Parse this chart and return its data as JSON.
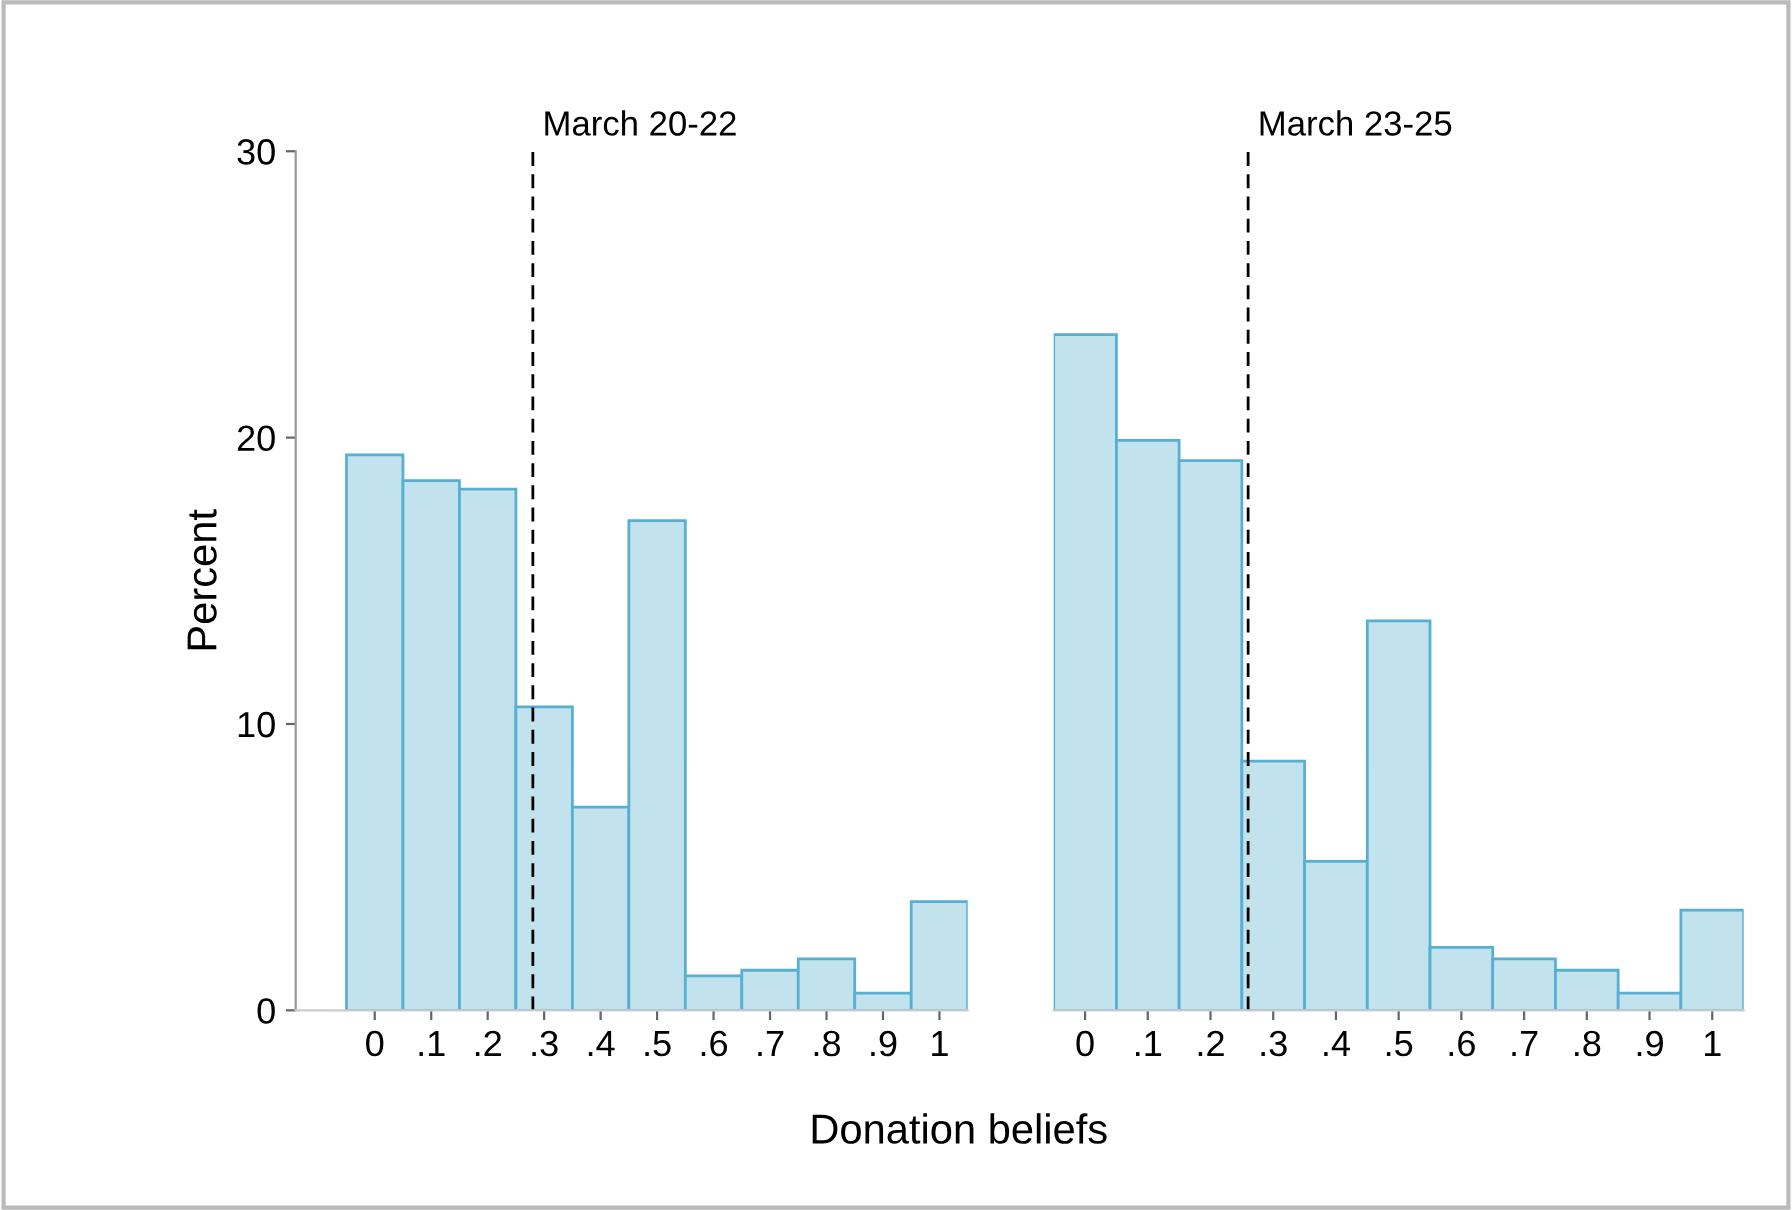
{
  "chart_data": [
    {
      "type": "histogram",
      "ylabel": "Percent",
      "xlabel": "Donation beliefs",
      "bins": [
        -0.05,
        0.05,
        0.15,
        0.25,
        0.35,
        0.45,
        0.55,
        0.65,
        0.75,
        0.85,
        0.95,
        1.05
      ],
      "values": [
        19.4,
        18.5,
        18.2,
        10.6,
        7.1,
        17.1,
        1.2,
        1.4,
        1.8,
        0.6,
        3.8
      ],
      "color": "#c2e2ee",
      "xlim": [
        -0.14,
        1.05
      ],
      "ylim": [
        0,
        30
      ],
      "yticks": [
        0,
        10,
        20,
        30
      ],
      "xticks": [
        0,
        {
          "value": 0.1,
          "label": ".1"
        },
        {
          "value": 0.2,
          "label": ".2"
        },
        {
          "value": 0.3,
          "label": ".3"
        },
        {
          "value": 0.4,
          "label": ".4"
        },
        {
          "value": 0.5,
          "label": ".5"
        },
        {
          "value": 0.6,
          "label": ".6"
        },
        {
          "value": 0.7,
          "label": ".7"
        },
        {
          "value": 0.8,
          "label": ".8"
        },
        {
          "value": 0.9,
          "label": ".9"
        },
        1
      ],
      "ref_lines": [
        {
          "axis": "x",
          "value": 0.28,
          "label": "March 20-22",
          "color": "#000000",
          "line_style": "dashed"
        }
      ],
      "grid": false
    },
    {
      "type": "histogram",
      "bins": [
        -0.05,
        0.05,
        0.15,
        0.25,
        0.35,
        0.45,
        0.55,
        0.65,
        0.75,
        0.85,
        0.95,
        1.05
      ],
      "values": [
        23.6,
        19.9,
        19.2,
        8.7,
        5.2,
        13.6,
        2.2,
        1.8,
        1.4,
        0.6,
        3.5
      ],
      "color": "#c2e2ee",
      "xlim": [
        -0.05,
        1.05
      ],
      "ylim": [
        0,
        30
      ],
      "tick_labels": "x",
      "xticks": [
        0,
        {
          "value": 0.1,
          "label": ".1"
        },
        {
          "value": 0.2,
          "label": ".2"
        },
        {
          "value": 0.3,
          "label": ".3"
        },
        {
          "value": 0.4,
          "label": ".4"
        },
        {
          "value": 0.5,
          "label": ".5"
        },
        {
          "value": 0.6,
          "label": ".6"
        },
        {
          "value": 0.7,
          "label": ".7"
        },
        {
          "value": 0.8,
          "label": ".8"
        },
        {
          "value": 0.9,
          "label": ".9"
        },
        1
      ],
      "ref_lines": [
        {
          "axis": "x",
          "value": 0.26,
          "label": "March 23-25",
          "color": "#000000",
          "line_style": "dashed"
        }
      ],
      "grid": false
    }
  ]
}
